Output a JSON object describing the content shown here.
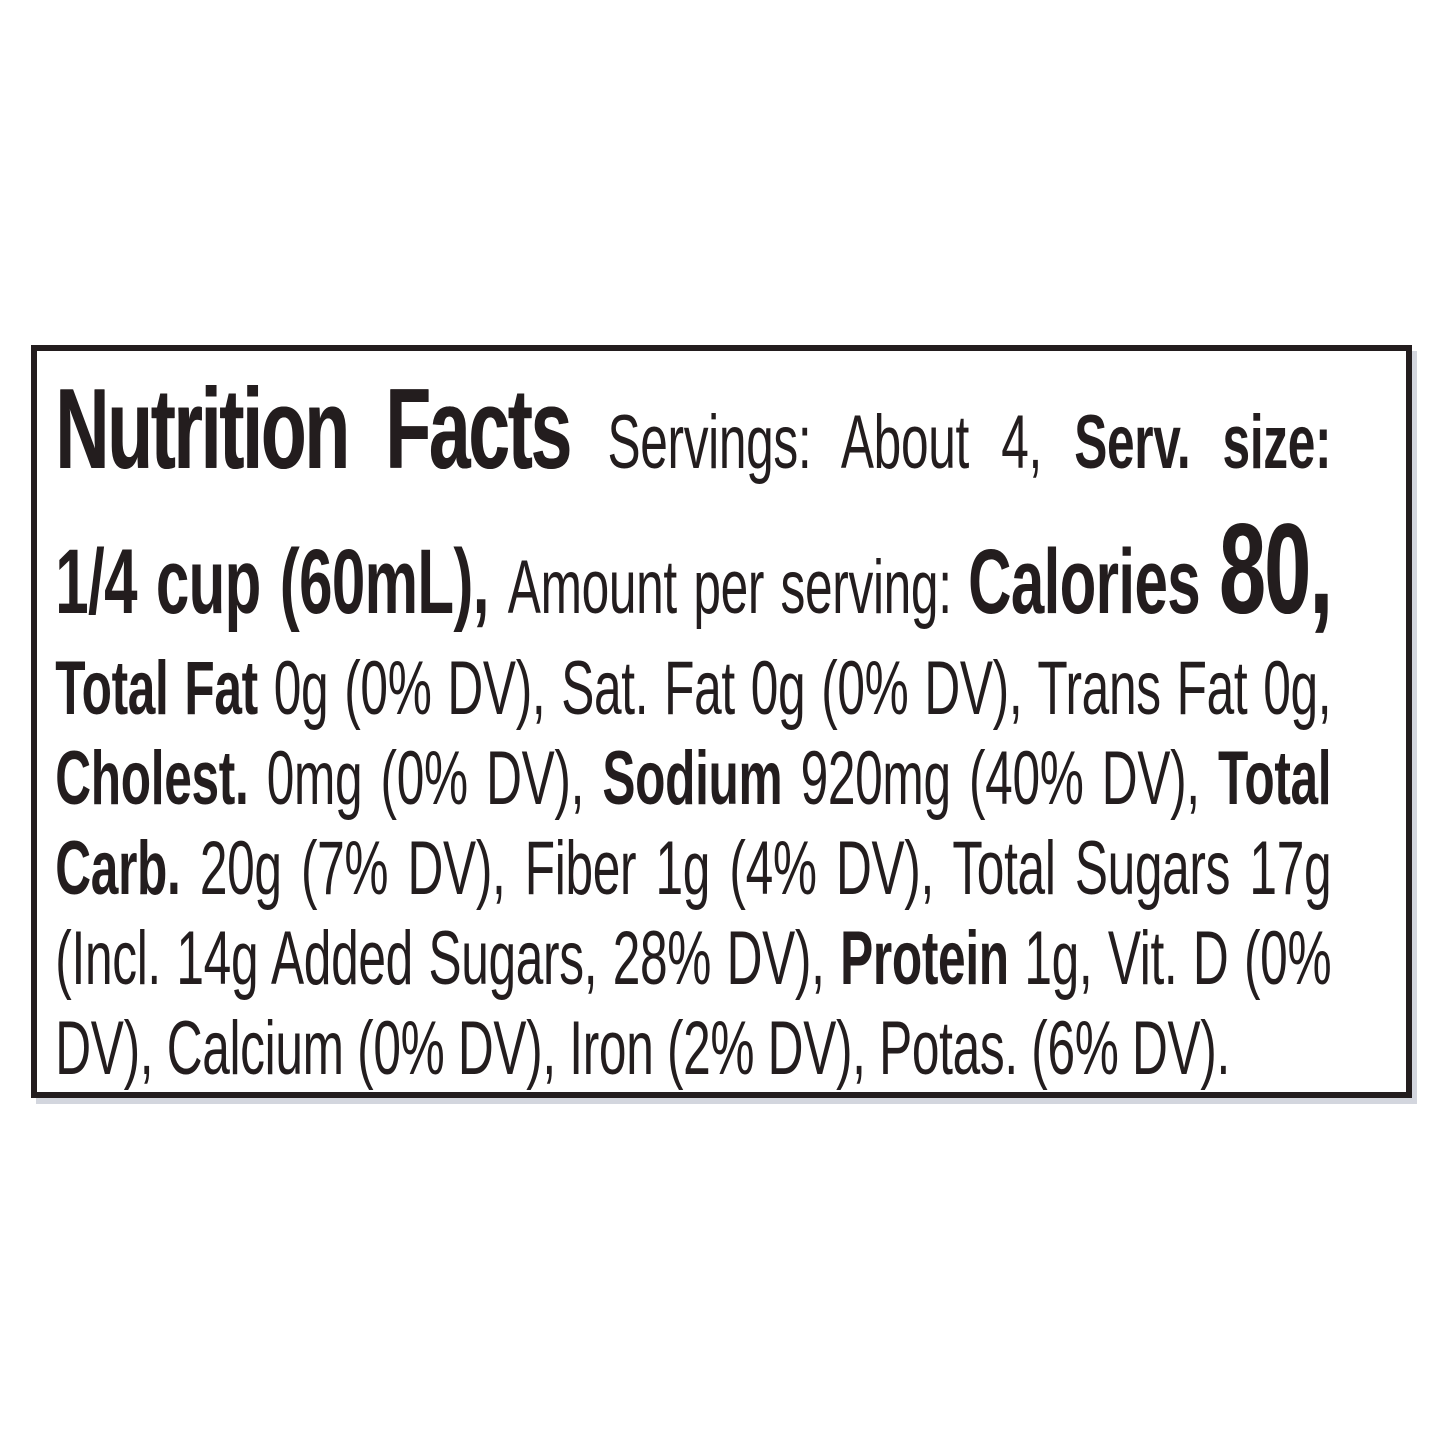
{
  "label": {
    "colors": {
      "ink": "#231d1e",
      "label_background": "#ffffff",
      "page_background": "#ffffff"
    },
    "servings": "About 4",
    "serving_size": "1/4 cup (60mL)",
    "calories": "80",
    "nutrients": {
      "total_fat": "0g (0% DV)",
      "saturated_fat": "0g (0% DV)",
      "trans_fat": "0g",
      "cholesterol": "0mg (0% DV)",
      "sodium": "920mg (40% DV)",
      "total_carbohydrate": "20g (7% DV)",
      "fiber": "1g (4% DV)",
      "total_sugars": "17g",
      "added_sugars": "14g (28% DV)",
      "protein": "1g",
      "vitamin_d": "0% DV",
      "calcium": "0% DV",
      "iron": "2% DV",
      "potassium": "6% DV"
    },
    "lines": [
      {
        "segments": [
          {
            "text": "Nutrition Facts ",
            "style": "title"
          },
          {
            "text": "Servings: About 4, ",
            "style": "regular"
          },
          {
            "text": "Serv. size:",
            "style": "bold"
          }
        ]
      },
      {
        "segments": [
          {
            "text": "1/4 cup (60mL), ",
            "style": "bold-large"
          },
          {
            "text": "Amount per serving: ",
            "style": "regular"
          },
          {
            "text": "Calories ",
            "style": "bold-large"
          },
          {
            "text": "80,",
            "style": "calories-value"
          }
        ]
      },
      {
        "segments": [
          {
            "text": "Total Fat ",
            "style": "bold"
          },
          {
            "text": "0g (0% DV), Sat. Fat 0g (0% DV), Trans Fat 0g,",
            "style": "regular"
          }
        ]
      },
      {
        "segments": [
          {
            "text": "Cholest. ",
            "style": "bold"
          },
          {
            "text": "0mg (0% DV), ",
            "style": "regular"
          },
          {
            "text": "Sodium ",
            "style": "bold"
          },
          {
            "text": "920mg (40% DV), ",
            "style": "regular"
          },
          {
            "text": "Total",
            "style": "bold"
          }
        ]
      },
      {
        "segments": [
          {
            "text": "Carb. ",
            "style": "bold"
          },
          {
            "text": "20g (7% DV), Fiber 1g (4% DV), Total Sugars 17g",
            "style": "regular"
          }
        ]
      },
      {
        "segments": [
          {
            "text": "(Incl. 14g Added Sugars, 28% DV), ",
            "style": "regular"
          },
          {
            "text": "Protein ",
            "style": "bold"
          },
          {
            "text": "1g, Vit. D (0%",
            "style": "regular"
          }
        ]
      },
      {
        "segments": [
          {
            "text": "DV), Calcium (0% DV), Iron (2% DV), Potas. (6% DV).",
            "style": "regular"
          }
        ]
      }
    ]
  }
}
